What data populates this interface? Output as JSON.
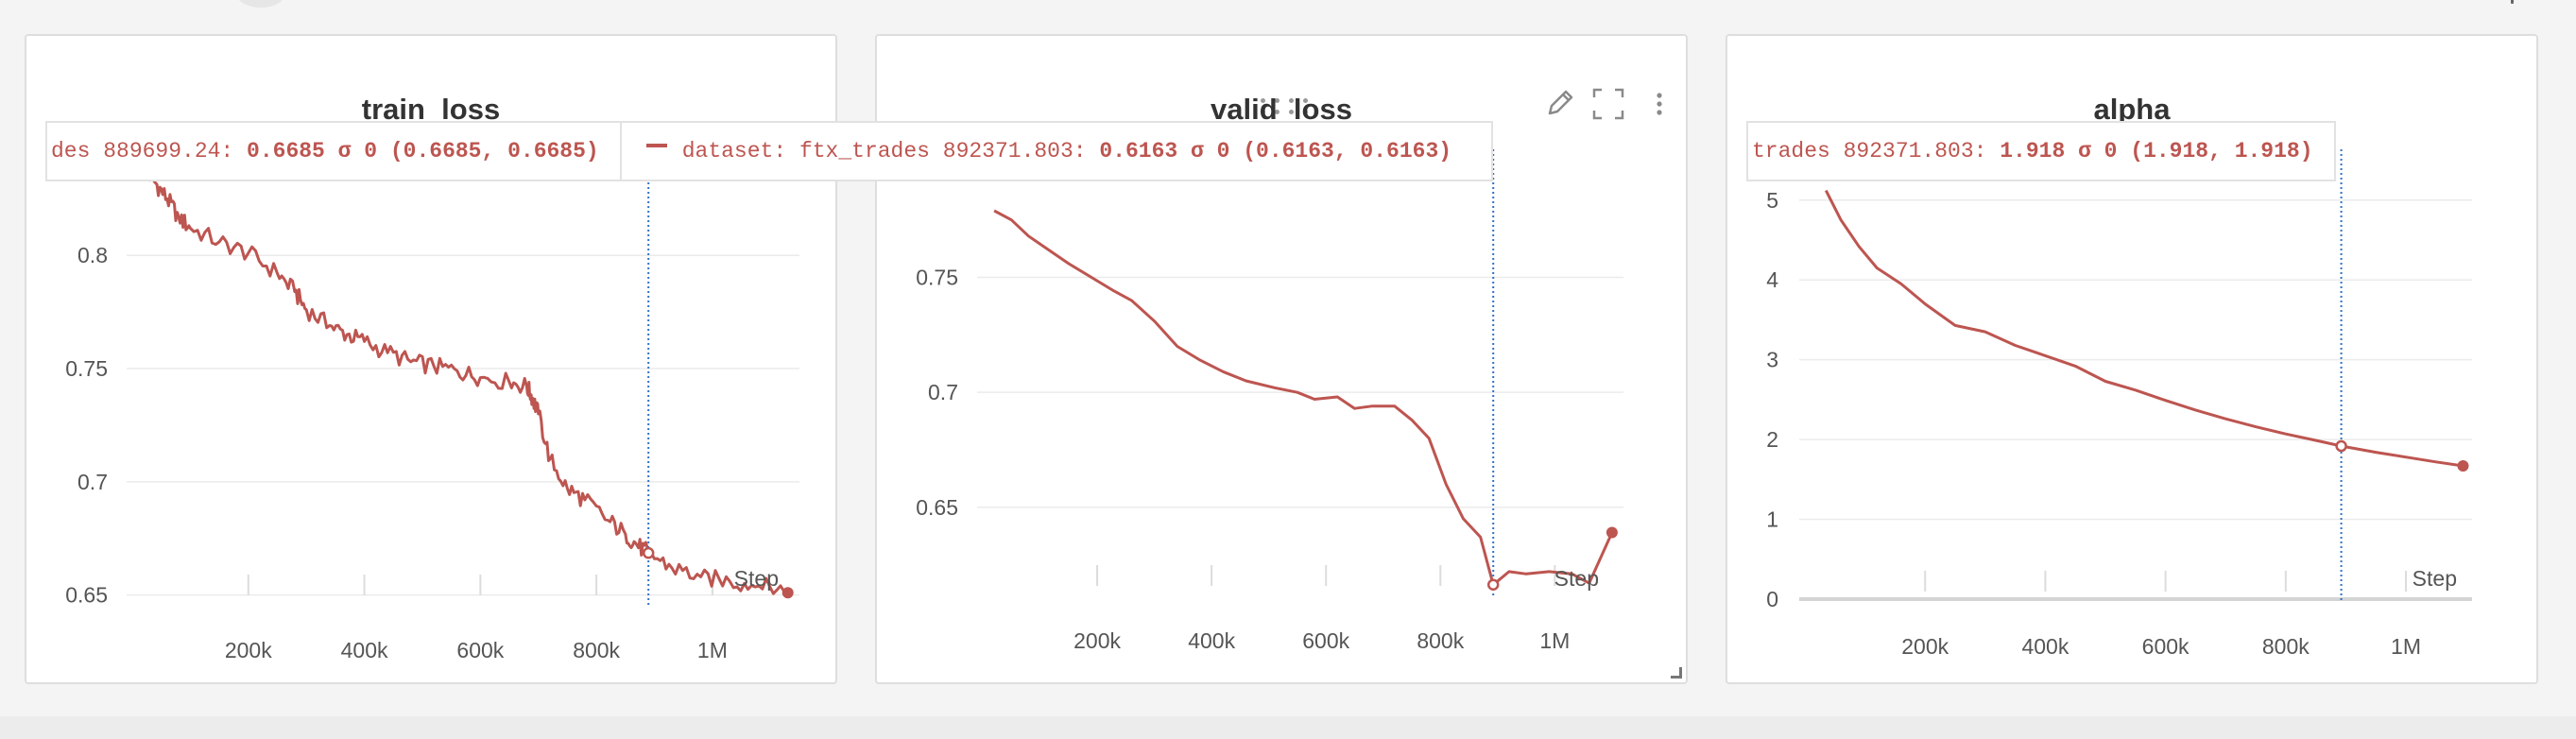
{
  "colors": {
    "series": "#bd5550",
    "cursor": "#2f73c8",
    "grid": "#ebebeb",
    "text": "#555555",
    "title": "#333333"
  },
  "icons": {
    "edit": "pencil-icon",
    "fullscreen": "fullscreen-icon",
    "menu": "more-vertical-icon",
    "drag": "drag-handle-icon"
  },
  "panels": [
    {
      "title": "train_loss",
      "tooltip": {
        "segments": [
          {
            "legend": false,
            "text": "des 889699.24: ",
            "bold": "0.6685 σ 0 (0.6685, 0.6685)"
          },
          {
            "legend": true,
            "text": "dataset: ftx_trades 892371.803: ",
            "bold": "0.6163 σ 0 (0.6163, 0.6163)"
          }
        ]
      },
      "step_label": "Step",
      "chart_data": {
        "type": "line",
        "title": "train_loss",
        "xlabel": "Step",
        "ylabel": "",
        "xlim": [
          0,
          1150000
        ],
        "ylim": [
          0.6465,
          0.8385
        ],
        "x_ticks": [
          200000,
          400000,
          600000,
          800000,
          1000000
        ],
        "x_tick_labels": [
          "200k",
          "400k",
          "600k",
          "800k",
          "1M"
        ],
        "y_ticks": [
          0.65,
          0.7,
          0.75,
          0.8
        ],
        "y_tick_labels": [
          "0.65",
          "0.7",
          "0.75",
          "0.8"
        ],
        "cursor_x": 889699,
        "series": [
          {
            "name": "dataset: ftx_trades",
            "noisy": true,
            "x": [
              20000,
              40000,
              60000,
              80000,
              100000,
              150000,
              200000,
              250000,
              280000,
              300000,
              340000,
              370000,
              400000,
              440000,
              480000,
              520000,
              560000,
              600000,
              650000,
              680000,
              690000,
              700000,
              720000,
              750000,
              780000,
              820000,
              850000,
              870000,
              890000,
              930000,
              980000,
              1030000,
              1080000,
              1130000
            ],
            "values": [
              0.838,
              0.832,
              0.825,
              0.817,
              0.812,
              0.806,
              0.801,
              0.792,
              0.784,
              0.776,
              0.769,
              0.765,
              0.762,
              0.757,
              0.753,
              0.751,
              0.749,
              0.746,
              0.744,
              0.742,
              0.737,
              0.73,
              0.71,
              0.697,
              0.692,
              0.683,
              0.677,
              0.672,
              0.6685,
              0.662,
              0.658,
              0.656,
              0.654,
              0.652
            ],
            "end_value": 0.651
          }
        ]
      }
    },
    {
      "title": "valid_loss",
      "tooltip": null,
      "step_label": "Step",
      "chart_data": {
        "type": "line",
        "title": "valid_loss",
        "xlabel": "Step",
        "ylabel": "",
        "xlim": [
          0,
          1120000
        ],
        "ylim": [
          0.6125,
          0.7975
        ],
        "x_ticks": [
          200000,
          400000,
          600000,
          800000,
          1000000
        ],
        "x_tick_labels": [
          "200k",
          "400k",
          "600k",
          "800k",
          "1M"
        ],
        "y_ticks": [
          0.65,
          0.7,
          0.75
        ],
        "y_tick_labels": [
          "0.65",
          "0.7",
          "0.75"
        ],
        "cursor_x": 892372,
        "series": [
          {
            "name": "dataset: ftx_trades",
            "noisy": false,
            "x": [
              20000,
              50000,
              80000,
              115000,
              150000,
              190000,
              230000,
              260000,
              300000,
              340000,
              380000,
              420000,
              460000,
              510000,
              550000,
              580000,
              620000,
              650000,
              680000,
              720000,
              750000,
              780000,
              810000,
              840000,
              870000,
              892372,
              920000,
              950000,
              990000,
              1030000,
              1060000,
              1100000
            ],
            "values": [
              0.779,
              0.775,
              0.768,
              0.762,
              0.756,
              0.75,
              0.744,
              0.74,
              0.731,
              0.72,
              0.714,
              0.709,
              0.705,
              0.702,
              0.7,
              0.697,
              0.698,
              0.693,
              0.694,
              0.694,
              0.688,
              0.68,
              0.66,
              0.645,
              0.637,
              0.6163,
              0.622,
              0.621,
              0.622,
              0.621,
              0.617,
              0.639
            ],
            "end_value": 0.639
          }
        ]
      }
    },
    {
      "title": "alpha",
      "tooltip": {
        "segments": [
          {
            "legend": false,
            "text": "trades 892371.803: ",
            "bold": "1.918 σ 0 (1.918, 1.918)"
          }
        ]
      },
      "step_label": "Step",
      "chart_data": {
        "type": "line",
        "title": "alpha",
        "xlabel": "Step",
        "ylabel": "",
        "xlim": [
          0,
          1110000
        ],
        "ylim": [
          0,
          5.4
        ],
        "x_ticks": [
          200000,
          400000,
          600000,
          800000,
          1000000
        ],
        "x_tick_labels": [
          "200k",
          "400k",
          "600k",
          "800k",
          "1M"
        ],
        "y_ticks": [
          0,
          1,
          2,
          3,
          4,
          5
        ],
        "y_tick_labels": [
          "0",
          "1",
          "2",
          "3",
          "4",
          "5"
        ],
        "cursor_x": 892372,
        "series": [
          {
            "name": "dataset: ftx_trades",
            "noisy": false,
            "x": [
              35000,
              60000,
              90000,
              120000,
              160000,
              200000,
              250000,
              300000,
              350000,
              400000,
              450000,
              500000,
              550000,
              600000,
              650000,
              700000,
              750000,
              800000,
              850000,
              892372,
              950000,
              1000000,
              1050000,
              1095000
            ],
            "values": [
              5.12,
              4.75,
              4.42,
              4.15,
              3.95,
              3.7,
              3.43,
              3.35,
              3.18,
              3.05,
              2.92,
              2.73,
              2.62,
              2.49,
              2.37,
              2.26,
              2.16,
              2.07,
              1.99,
              1.918,
              1.84,
              1.78,
              1.72,
              1.67
            ],
            "end_value": 1.67
          }
        ]
      }
    }
  ]
}
